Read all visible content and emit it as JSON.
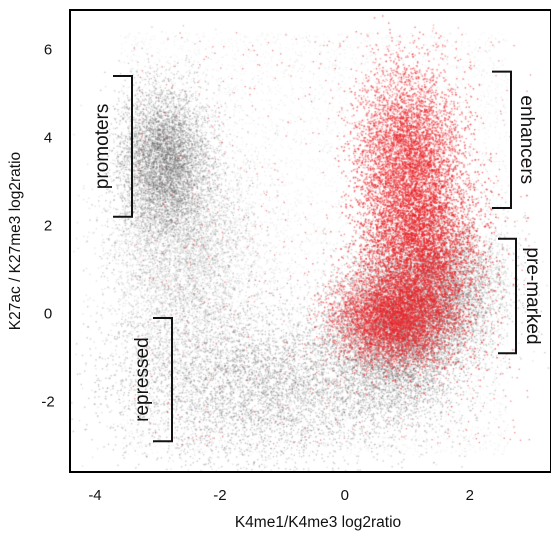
{
  "chart_data": {
    "type": "scatter",
    "title": "",
    "xlabel": "K4me1/K4me3 log2ratio",
    "ylabel": "K27ac / K27me3 log2ratio",
    "xlim": [
      -4.4,
      3.3
    ],
    "ylim": [
      -3.6,
      6.9
    ],
    "x_ticks": [
      "-4",
      "-2",
      "0",
      "2"
    ],
    "x_tick_values": [
      -4,
      -2,
      0,
      2
    ],
    "y_ticks": [
      "-2",
      "0",
      "2",
      "4",
      "6"
    ],
    "y_tick_values": [
      -2,
      0,
      2,
      4,
      6
    ],
    "grid": false,
    "legend": "none",
    "series": [
      {
        "color": "#555555",
        "clusters": [
          {
            "cx": -2.9,
            "cy": 3.5,
            "sx": 0.35,
            "sy": 0.8,
            "weight": 0.22
          },
          {
            "cx": -2.6,
            "cy": 1.5,
            "sx": 0.6,
            "sy": 1.3,
            "weight": 0.14
          },
          {
            "cx": -1.4,
            "cy": -1.6,
            "sx": 1.2,
            "sy": 0.9,
            "weight": 0.22
          },
          {
            "cx": 0.8,
            "cy": -0.6,
            "sx": 0.55,
            "sy": 0.9,
            "weight": 0.24
          },
          {
            "cx": 1.5,
            "cy": 0.6,
            "sx": 0.55,
            "sy": 0.8,
            "weight": 0.18
          }
        ]
      },
      {
        "color": "#e8262b",
        "clusters": [
          {
            "cx": 1.2,
            "cy": 1.3,
            "sx": 0.45,
            "sy": 1.1,
            "weight": 0.45
          },
          {
            "cx": 1.0,
            "cy": 3.6,
            "sx": 0.4,
            "sy": 1.0,
            "weight": 0.3
          },
          {
            "cx": 0.7,
            "cy": -0.1,
            "sx": 0.45,
            "sy": 0.5,
            "weight": 0.25
          }
        ]
      }
    ],
    "annotations": [
      {
        "label": "promoters",
        "y_range": [
          2.2,
          5.4
        ],
        "side": "left"
      },
      {
        "label": "repressed",
        "y_range": [
          -2.9,
          -0.1
        ],
        "side": "left"
      },
      {
        "label": "enhancers",
        "y_range": [
          2.4,
          5.5
        ],
        "side": "right"
      },
      {
        "label": "pre-marked",
        "y_range": [
          -0.9,
          1.7
        ],
        "side": "right"
      }
    ]
  }
}
